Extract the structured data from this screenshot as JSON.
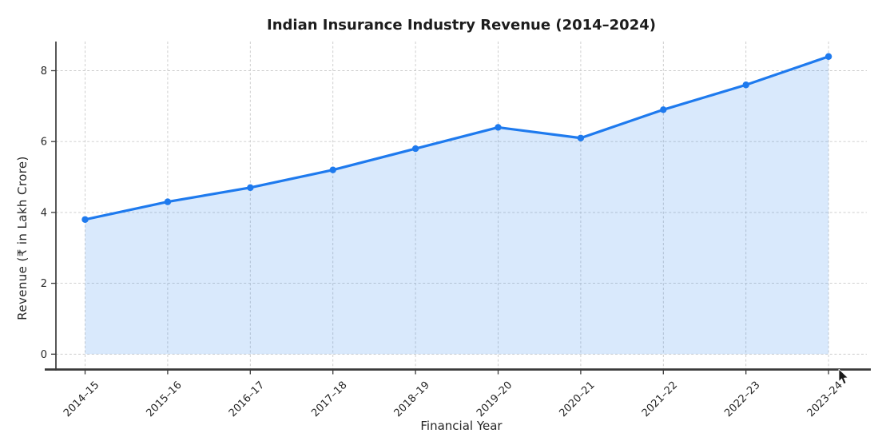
{
  "figure": {
    "background": "#ffffff"
  },
  "icons": {
    "mouse_cursor": "arrow-pointer"
  },
  "chart_data": {
    "type": "line",
    "title": "Indian Insurance Industry Revenue (2014–2024)",
    "xlabel": "Financial Year",
    "ylabel": "Revenue (₹ in Lakh Crore)",
    "categories": [
      "2014–15",
      "2015–16",
      "2016–17",
      "2017–18",
      "2018–19",
      "2019–20",
      "2020–21",
      "2021–22",
      "2022–23",
      "2023–24"
    ],
    "values": [
      3.8,
      4.3,
      4.7,
      5.2,
      5.8,
      6.4,
      6.1,
      6.9,
      7.6,
      8.4
    ],
    "series_name": "Revenue",
    "yticks": [
      0,
      2,
      4,
      6,
      8
    ],
    "ylim": [
      -0.42,
      8.82
    ],
    "grid": true,
    "grid_style": "dashed",
    "legend": "none",
    "marker": "circle",
    "area_fill": true,
    "colors": {
      "line": "#1e7aee",
      "fill": "#1e7aee",
      "fill_opacity": 0.17,
      "grid": "#c9c9c9",
      "spine": "#3a3a3a",
      "text": "#262626",
      "title": "#1c1c1c"
    }
  }
}
